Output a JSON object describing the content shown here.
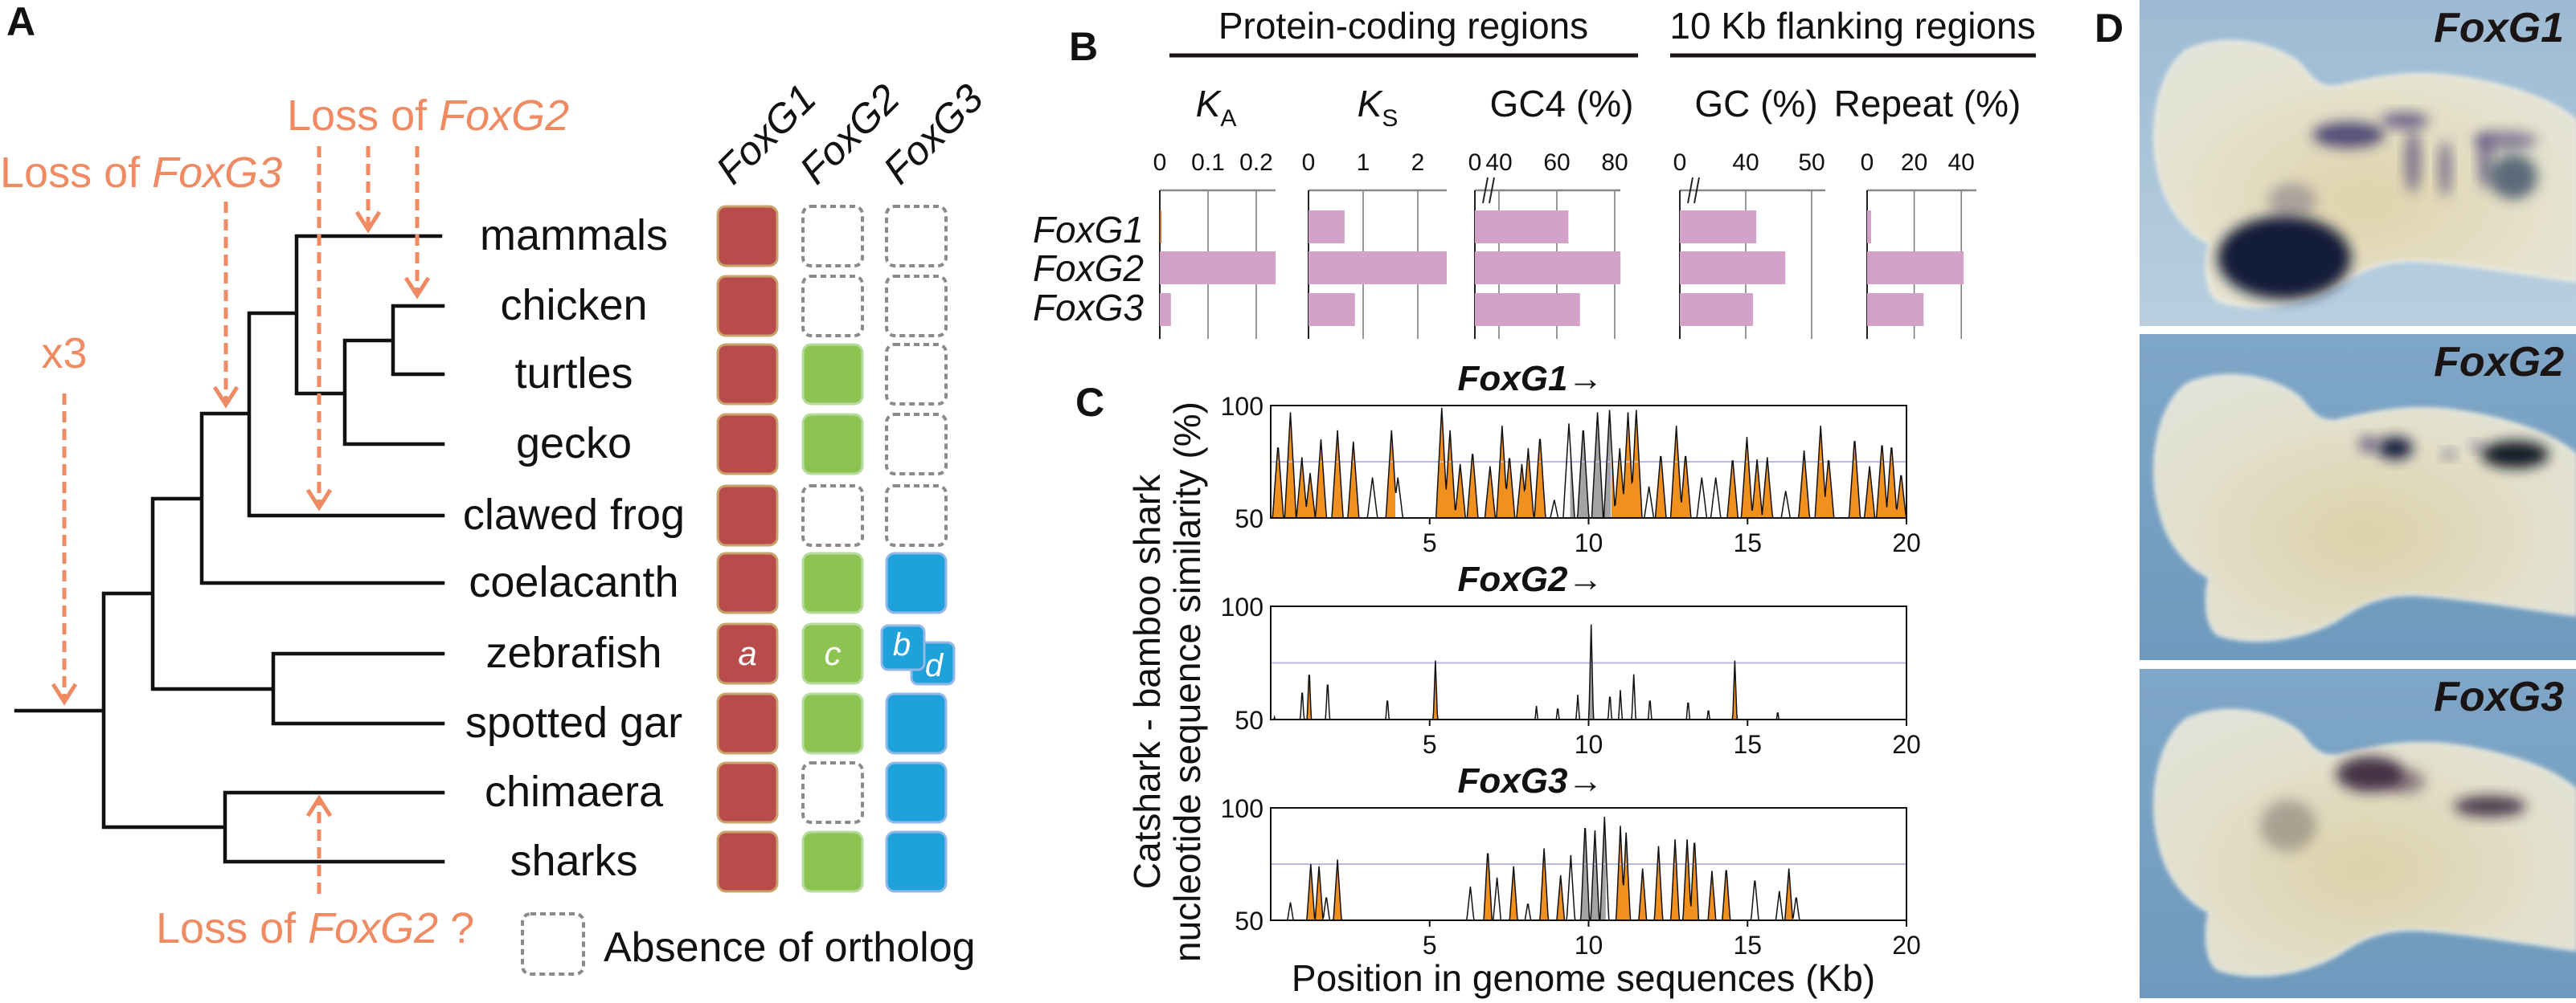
{
  "panel_labels": {
    "a": "A",
    "b": "B",
    "c": "C",
    "d": "D"
  },
  "panel_a": {
    "gene_columns": [
      "FoxG1",
      "FoxG2",
      "FoxG3"
    ],
    "species": [
      {
        "name": "mammals",
        "orthologs": [
          "present",
          "absent",
          "absent"
        ]
      },
      {
        "name": "chicken",
        "orthologs": [
          "present",
          "absent",
          "absent"
        ]
      },
      {
        "name": "turtles",
        "orthologs": [
          "present",
          "present",
          "absent"
        ]
      },
      {
        "name": "gecko",
        "orthologs": [
          "present",
          "present",
          "absent"
        ]
      },
      {
        "name": "clawed frog",
        "orthologs": [
          "present",
          "absent",
          "absent"
        ]
      },
      {
        "name": "coelacanth",
        "orthologs": [
          "present",
          "present",
          "present"
        ]
      },
      {
        "name": "zebrafish",
        "orthologs": [
          "present",
          "present",
          "duplicated"
        ],
        "labels": [
          "a",
          "c",
          "b",
          "d"
        ]
      },
      {
        "name": "spotted gar",
        "orthologs": [
          "present",
          "present",
          "present"
        ]
      },
      {
        "name": "chimaera",
        "orthologs": [
          "present",
          "absent",
          "present"
        ]
      },
      {
        "name": "sharks",
        "orthologs": [
          "present",
          "present",
          "present"
        ]
      }
    ],
    "events": {
      "duplication": {
        "text": "x3"
      },
      "loss_foxg3": {
        "prefix": "Loss of ",
        "gene": "FoxG3"
      },
      "loss_foxg2": {
        "prefix": "Loss of ",
        "gene": "FoxG2"
      },
      "loss_foxg2_uncertain": {
        "prefix": "Loss of ",
        "gene": "FoxG2",
        "suffix": " ?"
      }
    },
    "legend": {
      "absent_label": "Absence of ortholog"
    },
    "colors": {
      "FoxG1": "#b84c4a",
      "FoxG2": "#8dc351",
      "FoxG3": "#1fa2dc",
      "event": "#ef8a62",
      "absent_border": "#8a8a8a"
    }
  },
  "chart_data": [
    {
      "panel": "B",
      "type": "bar",
      "orientation": "horizontal",
      "group_headers": [
        "Protein-coding regions",
        "10 Kb flanking regions"
      ],
      "categories": [
        "FoxG1",
        "FoxG2",
        "FoxG3"
      ],
      "bar_color": "#d4a2c9",
      "grid": true,
      "metrics": [
        {
          "label": "K",
          "label_sub": "A",
          "ticks": [
            0,
            0.1,
            0.2
          ],
          "tick_labels": [
            "0",
            "0.1",
            "0.2"
          ],
          "xlim": [
            0,
            0.24
          ],
          "values": [
            0.003,
            0.24,
            0.023
          ]
        },
        {
          "label": "K",
          "label_sub": "S",
          "ticks": [
            0,
            1,
            2
          ],
          "tick_labels": [
            "0",
            "1",
            "2"
          ],
          "xlim": [
            0,
            2.53
          ],
          "values": [
            0.66,
            2.53,
            0.85
          ]
        },
        {
          "label": "GC4 (%)",
          "ticks": [
            0,
            40,
            60,
            80
          ],
          "tick_labels": [
            "0",
            "40",
            "60",
            "80"
          ],
          "axis_break": [
            0,
            40
          ],
          "xlim": [
            0,
            82
          ],
          "values": [
            64,
            82,
            68
          ]
        },
        {
          "label": "GC (%)",
          "ticks": [
            0,
            40,
            50
          ],
          "tick_labels": [
            "0",
            "40",
            "50"
          ],
          "axis_break": [
            0,
            40
          ],
          "xlim": [
            0,
            52
          ],
          "values": [
            41.6,
            46,
            41.1
          ]
        },
        {
          "label": "Repeat (%)",
          "ticks": [
            0,
            20,
            40
          ],
          "tick_labels": [
            "0",
            "20",
            "40"
          ],
          "xlim": [
            0,
            46
          ],
          "values": [
            1.7,
            41,
            24
          ]
        }
      ]
    },
    {
      "panel": "C",
      "type": "area",
      "gene": "FoxG1",
      "arrow": "→",
      "xlim": [
        0,
        20
      ],
      "ylim": [
        50,
        100
      ],
      "xticks": [
        5,
        10,
        15,
        20
      ],
      "yticks": [
        50,
        100
      ],
      "threshold": 75,
      "exon_kb": [
        9.4,
        10.7
      ],
      "peak_fields": [
        "position_kb",
        "similarity_pct",
        "conserved"
      ],
      "peaks": [
        [
          0.23,
          83,
          1
        ],
        [
          0.62,
          97,
          1
        ],
        [
          0.98,
          77,
          1
        ],
        [
          1.24,
          70,
          1
        ],
        [
          1.58,
          85,
          1
        ],
        [
          2.1,
          89,
          1
        ],
        [
          2.6,
          84,
          1
        ],
        [
          3.2,
          68,
          0
        ],
        [
          3.8,
          89,
          1
        ],
        [
          4.0,
          68,
          0
        ],
        [
          5.38,
          99,
          1
        ],
        [
          5.64,
          89,
          1
        ],
        [
          5.96,
          74,
          1
        ],
        [
          6.35,
          80,
          1
        ],
        [
          6.9,
          73,
          1
        ],
        [
          7.28,
          91,
          1
        ],
        [
          7.51,
          78,
          1
        ],
        [
          7.9,
          74,
          1
        ],
        [
          8.1,
          81,
          1
        ],
        [
          8.47,
          87,
          1
        ],
        [
          8.92,
          58,
          0
        ],
        [
          9.38,
          92,
          0
        ],
        [
          9.83,
          91,
          0
        ],
        [
          10.28,
          97,
          0
        ],
        [
          10.66,
          98,
          1
        ],
        [
          10.98,
          81,
          1
        ],
        [
          11.24,
          97,
          1
        ],
        [
          11.5,
          98,
          1
        ],
        [
          11.9,
          64,
          0
        ],
        [
          12.27,
          79,
          1
        ],
        [
          12.76,
          91,
          1
        ],
        [
          13.05,
          79,
          1
        ],
        [
          13.56,
          68,
          0
        ],
        [
          14.0,
          68,
          0
        ],
        [
          14.53,
          77,
          1
        ],
        [
          14.98,
          86,
          1
        ],
        [
          15.3,
          76,
          1
        ],
        [
          15.62,
          77,
          1
        ],
        [
          16.2,
          62,
          0
        ],
        [
          16.78,
          80,
          1
        ],
        [
          17.3,
          91,
          1
        ],
        [
          17.55,
          77,
          1
        ],
        [
          18.37,
          86,
          1
        ],
        [
          18.84,
          73,
          1
        ],
        [
          19.23,
          84,
          1
        ],
        [
          19.53,
          83,
          1
        ],
        [
          19.83,
          70,
          1
        ]
      ]
    },
    {
      "panel": "C",
      "type": "area",
      "gene": "FoxG2",
      "arrow": "→",
      "xlim": [
        0,
        20
      ],
      "ylim": [
        50,
        100
      ],
      "xticks": [
        5,
        10,
        15,
        20
      ],
      "yticks": [
        50,
        100
      ],
      "threshold": 75,
      "exon_kb": [
        9.8,
        10.3
      ],
      "peak_fields": [
        "position_kb",
        "similarity_pct",
        "conserved"
      ],
      "peaks": [
        [
          0.12,
          51,
          0
        ],
        [
          0.99,
          64,
          0
        ],
        [
          1.21,
          73,
          1
        ],
        [
          1.79,
          68,
          0
        ],
        [
          3.67,
          60,
          0
        ],
        [
          5.18,
          76,
          1
        ],
        [
          8.36,
          56,
          0
        ],
        [
          9.03,
          56,
          0
        ],
        [
          9.66,
          61,
          0
        ],
        [
          10.08,
          92,
          0
        ],
        [
          10.67,
          62,
          0
        ],
        [
          11.0,
          63,
          0
        ],
        [
          11.42,
          70,
          0
        ],
        [
          11.93,
          60,
          0
        ],
        [
          13.13,
          59,
          0
        ],
        [
          13.77,
          55,
          0
        ],
        [
          14.6,
          76,
          1
        ],
        [
          15.95,
          54,
          0
        ]
      ]
    },
    {
      "panel": "C",
      "type": "area",
      "gene": "FoxG3",
      "arrow": "→",
      "xlim": [
        0,
        20
      ],
      "ylim": [
        50,
        100
      ],
      "xticks": [
        5,
        10,
        15,
        20
      ],
      "yticks": [
        50,
        100
      ],
      "threshold": 75,
      "exon_kb": [
        9.55,
        10.55
      ],
      "peak_fields": [
        "position_kb",
        "similarity_pct",
        "conserved"
      ],
      "peaks": [
        [
          0.62,
          58,
          0
        ],
        [
          1.26,
          75,
          1
        ],
        [
          1.52,
          74,
          1
        ],
        [
          1.75,
          61,
          0
        ],
        [
          2.1,
          77,
          1
        ],
        [
          6.28,
          65,
          0
        ],
        [
          6.83,
          82,
          1
        ],
        [
          7.12,
          69,
          0
        ],
        [
          7.64,
          74,
          1
        ],
        [
          8.09,
          58,
          0
        ],
        [
          8.6,
          82,
          1
        ],
        [
          9.12,
          70,
          1
        ],
        [
          9.44,
          79,
          0
        ],
        [
          9.89,
          94,
          0
        ],
        [
          10.2,
          90,
          0
        ],
        [
          10.5,
          96,
          0
        ],
        [
          11.0,
          92,
          1
        ],
        [
          11.18,
          89,
          1
        ],
        [
          11.7,
          73,
          1
        ],
        [
          12.2,
          83,
          1
        ],
        [
          12.72,
          86,
          1
        ],
        [
          13.1,
          86,
          1
        ],
        [
          13.33,
          87,
          1
        ],
        [
          13.88,
          72,
          1
        ],
        [
          14.33,
          74,
          1
        ],
        [
          15.23,
          69,
          0
        ],
        [
          16.0,
          63,
          0
        ],
        [
          16.3,
          73,
          1
        ],
        [
          16.53,
          61,
          0
        ]
      ]
    }
  ],
  "panel_c": {
    "xlabel": "Position in genome sequences (Kb)",
    "ylabel_line1": "Catshark - bamboo shark",
    "ylabel_line2": "nucleotide sequence similarity (%)",
    "colors": {
      "conserved": "#f0901e",
      "exon": "#a3a3a3",
      "threshold": "#b8b8e0"
    }
  },
  "panel_d": {
    "images": [
      {
        "gene": "FoxG1"
      },
      {
        "gene": "FoxG2"
      },
      {
        "gene": "FoxG3"
      }
    ],
    "colors": {
      "background": "#8fb0ca",
      "stain": "#14163c",
      "tissue": "#e9e5d0"
    }
  }
}
